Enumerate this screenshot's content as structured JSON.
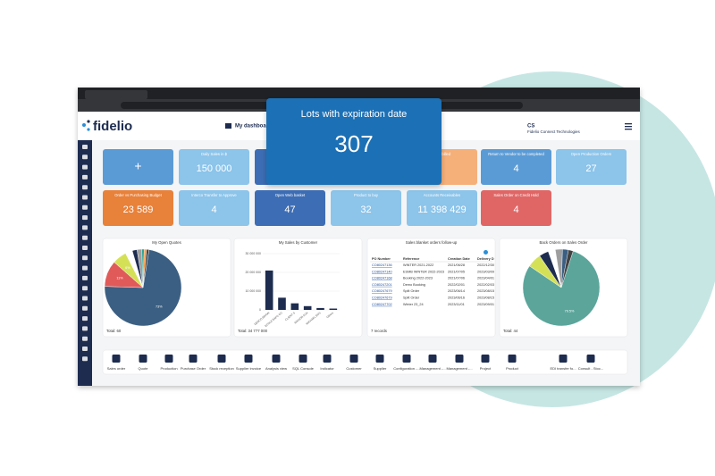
{
  "header": {
    "logo": "fidelio",
    "dashboard": "My dashboard",
    "user_initials": "CS",
    "company": "Fidelio Connect Technologies"
  },
  "popup": {
    "title": "Lots with expiration date",
    "value": "307"
  },
  "tiles": [
    {
      "title": "+",
      "color": "#5b9bd5"
    },
    {
      "title": "Daily Sales in $",
      "value": "150 000",
      "color": "#8cc4ea"
    },
    {
      "color": "#3d6db5"
    },
    {
      "color": "#3d6db5"
    },
    {
      "title": "o be billed",
      "color": "#f5b07a"
    },
    {
      "title": "Return to Vendor to be completed",
      "value": "4",
      "color": "#5b9bd5"
    },
    {
      "title": "Open Production Orders",
      "value": "27",
      "color": "#8cc4ea"
    },
    {
      "title": "Order vs Purchasing Budget",
      "value": "23 589",
      "color": "#e8813a"
    },
    {
      "title": "Interco Transfer to Approve",
      "value": "4",
      "color": "#8cc4ea"
    },
    {
      "title": "Open Web basket",
      "value": "47",
      "color": "#3d6db5"
    },
    {
      "title": "Product to buy",
      "value": "32",
      "color": "#8cc4ea"
    },
    {
      "title": "Accounts Receivables",
      "value": "11 398 429",
      "color": "#8cc4ea"
    },
    {
      "title": "Sales Order on Credit Hold",
      "value": "4",
      "color": "#e06666"
    }
  ],
  "panels": [
    {
      "title": "My Open Quotes",
      "footer": "Total: 60",
      "chart": {
        "type": "pie",
        "values": [
          73,
          11,
          6,
          3,
          2,
          2,
          1,
          1,
          1
        ],
        "value_labels": [
          "73%",
          "11%",
          "6%",
          null,
          null,
          null,
          null,
          null,
          null
        ],
        "colors": [
          "#3b5f82",
          "#e05a5a",
          "#d4e157",
          "#ffffff",
          "#1d2c4f",
          "#9e9e9e",
          "#26a69a",
          "#f59b42",
          "#424242"
        ]
      }
    },
    {
      "title": "My Sales by Customer",
      "footer": "Total: 34 777 000",
      "chart": {
        "type": "bar",
        "categories": [
          "DENCO BRION",
          "ECOLE BAPS CO",
          "CLIENT S",
          "MAISON AUX",
          "MICHAEL BOS",
          "Others"
        ],
        "values": [
          21000000,
          6500000,
          3500000,
          2000000,
          1000000,
          700000
        ],
        "color": "#1d2c4f",
        "ylim": [
          0,
          30000000
        ],
        "yticks": [
          0,
          {
            "value": 10000000,
            "label": "10 000 000"
          },
          {
            "value": 20000000,
            "label": "20 000 000"
          },
          {
            "value": 30000000,
            "label": "30 000 000"
          }
        ]
      }
    },
    {
      "title": "Sales blanket orders follow-up",
      "footer": "7 records",
      "table": {
        "columns": [
          "PO Number",
          "Reference",
          "Creation Date",
          "Delivery D"
        ],
        "rows": [
          [
            "CO80247136",
            "WINTER 2021-2022",
            "2021/06/28",
            "2022/12/30"
          ],
          [
            "CO80247140",
            "ESMB WINTER 2022-2023",
            "2021/07/05",
            "2023/03/09"
          ],
          [
            "CO80247168",
            "Booking 2022-2023",
            "2021/07/06",
            "2023/04/01"
          ],
          [
            "CO80247201",
            "Demo Booking",
            "2022/02/01",
            "2022/02/03"
          ],
          [
            "CO80247679",
            "Spilt Order",
            "2023/06/14",
            "2023/08/15"
          ],
          [
            "CO80247679",
            "Spilt Order",
            "2023/06/16",
            "2023/08/15"
          ],
          [
            "CO80247702",
            "Winter 23_24",
            "2023/11/01",
            "2023/09/01"
          ]
        ]
      }
    },
    {
      "title": "Back Orders on Sales Order",
      "footer": "Total: 44",
      "chart": {
        "type": "pie",
        "values": [
          79.5,
          6,
          4,
          3,
          3,
          2.5,
          2
        ],
        "value_labels": [
          "79.5%",
          null,
          null,
          null,
          null,
          null,
          null
        ],
        "colors": [
          "#5ba59b",
          "#d4e157",
          "#1d2c4f",
          "#ffffff",
          "#9e9e9e",
          "#3b5f82",
          "#424242"
        ]
      }
    }
  ],
  "toolbar": [
    "Sales order",
    "Quote",
    "Production",
    "Purchase Order",
    "Stock reception",
    "Supplier invoice",
    "Analysis view",
    "SQL Console",
    "Indicator",
    "Customer",
    "Supplier",
    "Configuration -...",
    "Management -...",
    "Management -...",
    "Project",
    "Product",
    "EDI transfer fo...",
    "Consult - Stoc..."
  ]
}
